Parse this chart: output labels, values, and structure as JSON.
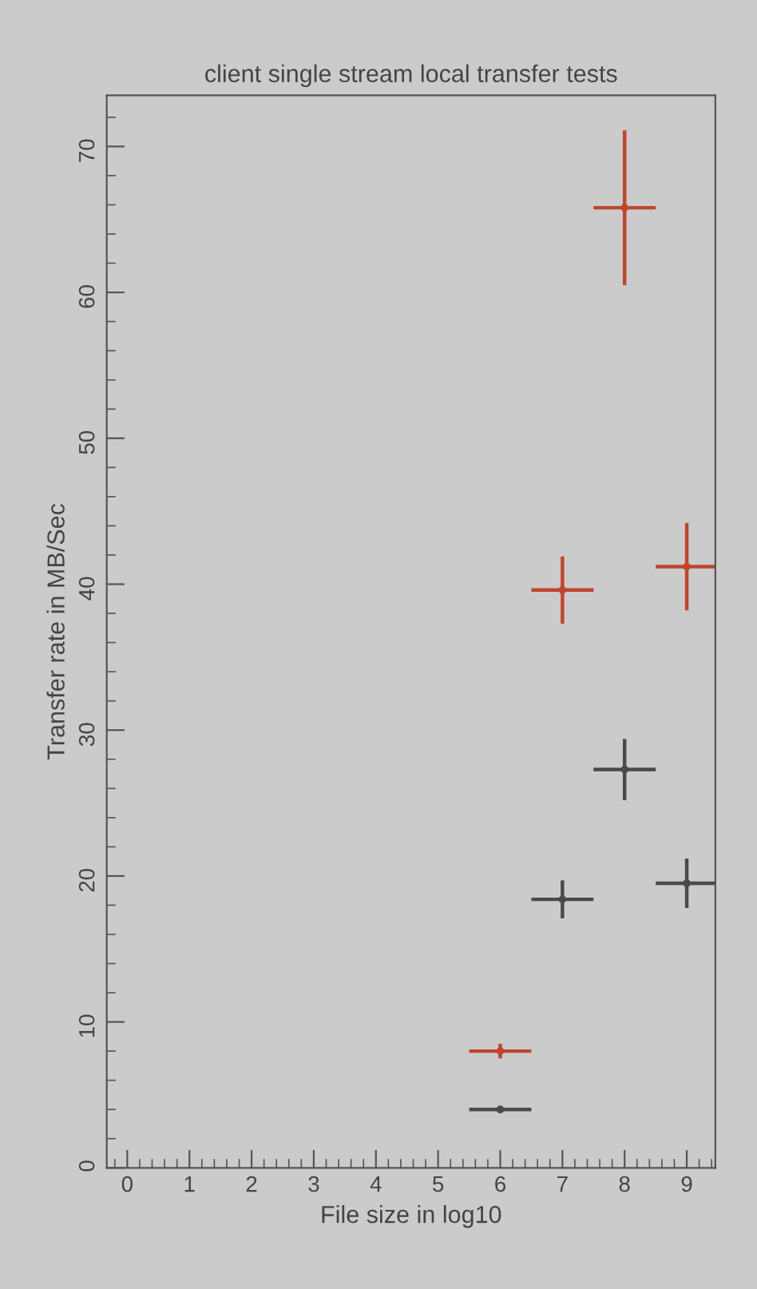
{
  "chart_data": {
    "type": "scatter",
    "title": "client single stream local transfer tests",
    "xlabel": "File size in log10",
    "ylabel": "Transfer rate in MB/Sec",
    "x": [
      6,
      7,
      8,
      9
    ],
    "series": [
      {
        "color": "#c0442e",
        "values": [
          8,
          39.6,
          65.8,
          41.2
        ],
        "errors": [
          0.5,
          2.3,
          5.3,
          3
        ],
        "xerrors": [
          0.5,
          0.5,
          0.5,
          0.5
        ]
      },
      {
        "color": "#4a4a4a",
        "values": [
          4,
          18.4,
          27.3,
          19.5
        ],
        "errors": [
          0.2,
          1.3,
          2.1,
          1.7
        ],
        "xerrors": [
          0.5,
          0.5,
          0.5,
          0.5
        ]
      }
    ],
    "xlim": [
      -0.33,
      9.46
    ],
    "ylim": [
      0,
      73.5
    ],
    "xticks": [
      0,
      1,
      2,
      3,
      4,
      5,
      6,
      7,
      8,
      9
    ],
    "yticks": [
      0,
      10,
      20,
      30,
      40,
      50,
      60,
      70
    ],
    "grid": false
  }
}
